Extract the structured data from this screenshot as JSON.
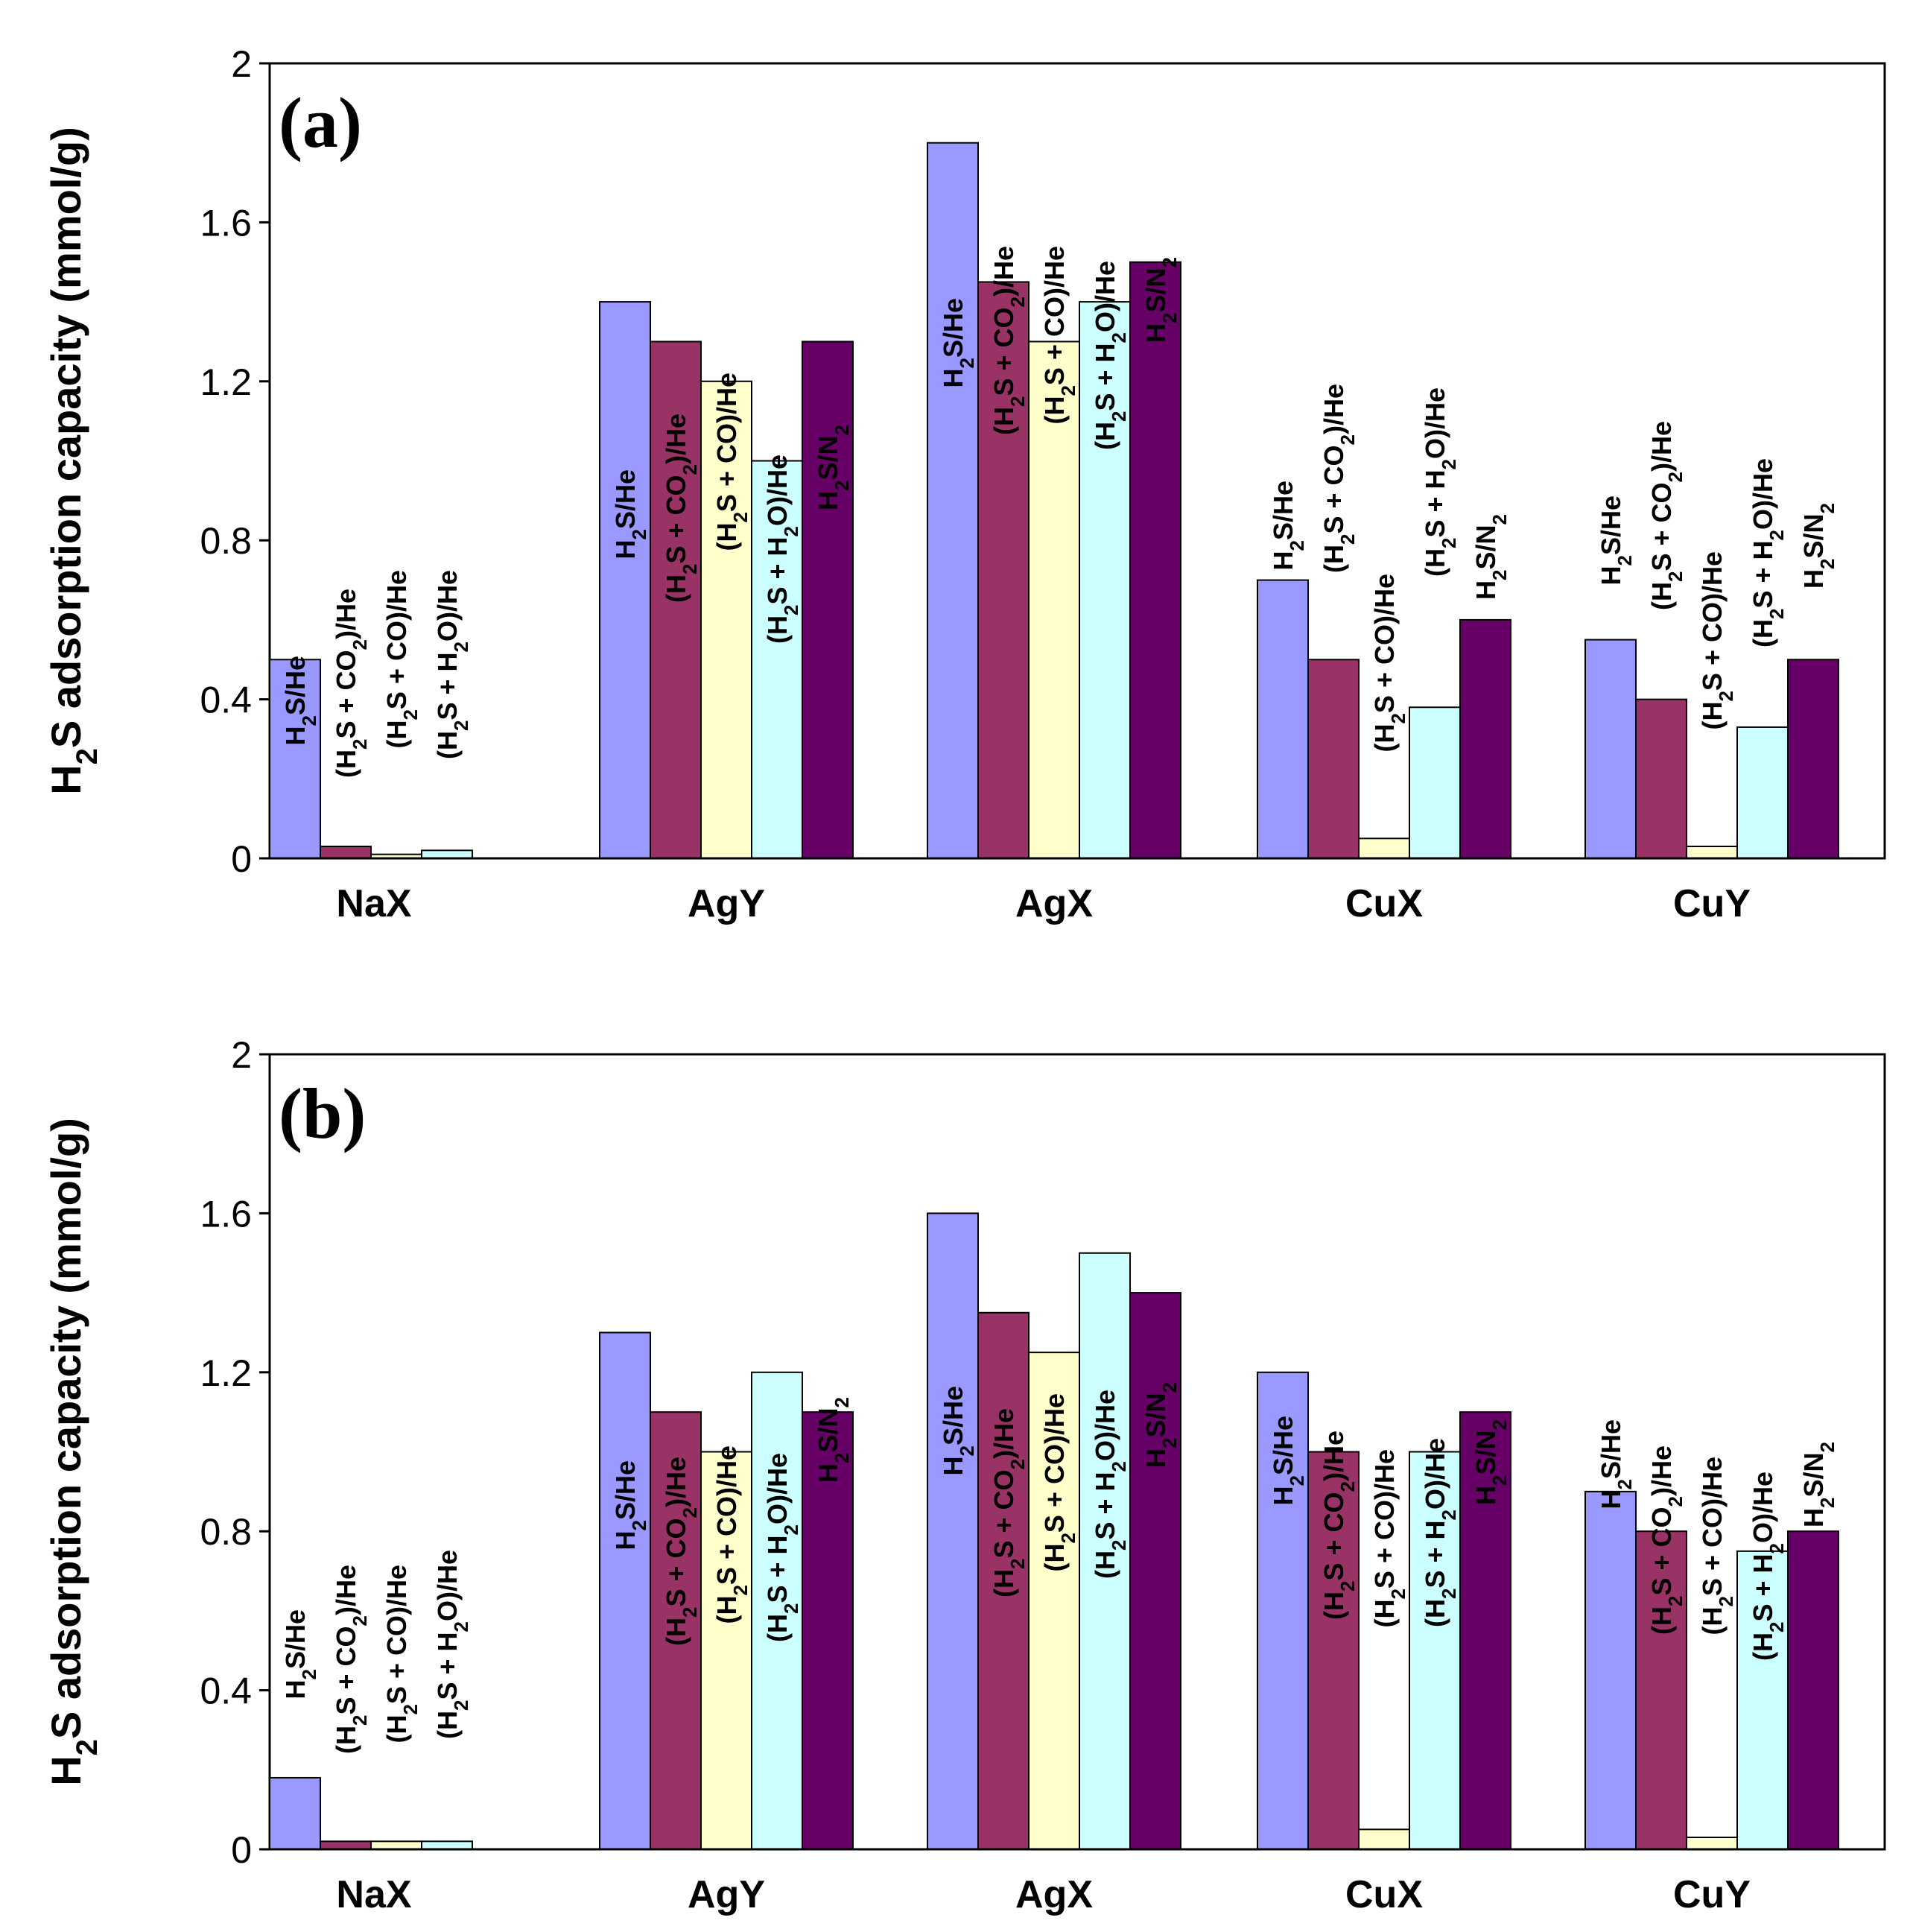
{
  "chart_data": [
    {
      "type": "bar",
      "panel_label": "(a)",
      "ylabel": "H2S adsorption capacity (mmol/g)",
      "ylim": [
        0,
        2
      ],
      "yticks": [
        "0",
        "0.4",
        "0.8",
        "1.2",
        "1.6",
        "2"
      ],
      "categories": [
        "NaX",
        "AgY",
        "AgX",
        "CuX",
        "CuY"
      ],
      "series": [
        {
          "name": "H2S/He",
          "color": "#9999ff",
          "values": [
            0.5,
            1.4,
            1.8,
            0.7,
            0.55
          ]
        },
        {
          "name": "(H2S + CO2)/He",
          "color": "#993366",
          "values": [
            0.03,
            1.3,
            1.45,
            0.5,
            0.4
          ]
        },
        {
          "name": "(H2S + CO)/He",
          "color": "#ffffcc",
          "values": [
            0.01,
            1.2,
            1.3,
            0.05,
            0.03
          ]
        },
        {
          "name": "(H2S + H2O)/He",
          "color": "#ccffff",
          "values": [
            0.02,
            1.0,
            1.4,
            0.38,
            0.33
          ]
        },
        {
          "name": "H2S/N2",
          "color": "#660066",
          "values": [
            0.0,
            1.3,
            1.5,
            0.6,
            0.5
          ]
        }
      ]
    },
    {
      "type": "bar",
      "panel_label": "(b)",
      "ylabel": "H2S adsorption capacity (mmol/g)",
      "ylim": [
        0,
        2
      ],
      "yticks": [
        "0",
        "0.4",
        "0.8",
        "1.2",
        "1.6",
        "2"
      ],
      "categories": [
        "NaX",
        "AgY",
        "AgX",
        "CuX",
        "CuY"
      ],
      "series": [
        {
          "name": "H2S/He",
          "color": "#9999ff",
          "values": [
            0.18,
            1.3,
            1.6,
            1.2,
            0.9
          ]
        },
        {
          "name": "(H2S + CO2)/He",
          "color": "#993366",
          "values": [
            0.02,
            1.1,
            1.35,
            1.0,
            0.8
          ]
        },
        {
          "name": "(H2S + CO)/He",
          "color": "#ffffcc",
          "values": [
            0.02,
            1.0,
            1.25,
            0.05,
            0.03
          ]
        },
        {
          "name": "(H2S + H2O)/He",
          "color": "#ccffff",
          "values": [
            0.02,
            1.2,
            1.5,
            1.0,
            0.75
          ]
        },
        {
          "name": "H2S/N2",
          "color": "#660066",
          "values": [
            0.0,
            1.1,
            1.4,
            1.1,
            0.8
          ]
        }
      ]
    }
  ]
}
